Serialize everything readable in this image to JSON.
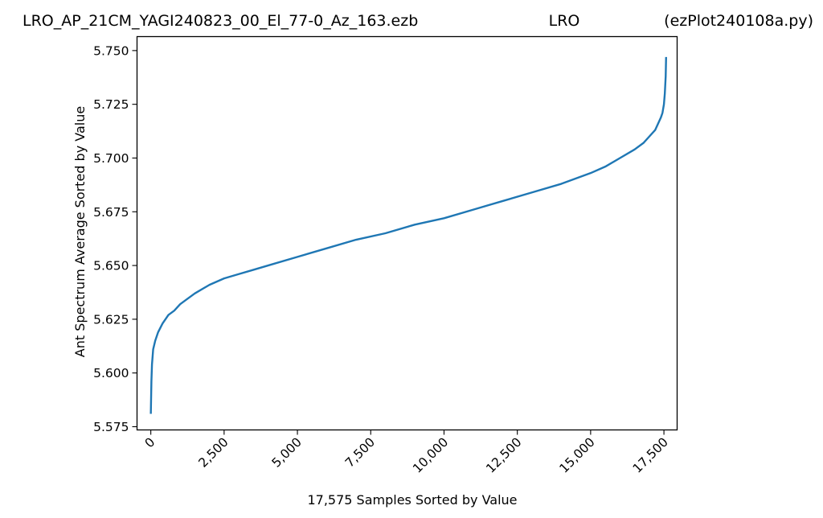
{
  "chart_data": {
    "type": "line",
    "title_left": "LRO_AP_21CM_YAGI240823_00_El_77-0_Az_163.ezb",
    "title_center": "LRO",
    "title_right": "(ezPlot240108a.py)",
    "xlabel": "17,575 Samples Sorted by Value",
    "ylabel": "Ant Spectrum Average Sorted by Value",
    "xlim": [
      -470,
      17950
    ],
    "ylim": [
      5.5735,
      5.7565
    ],
    "xticks": [
      0,
      2500,
      5000,
      7500,
      10000,
      12500,
      15000,
      17500
    ],
    "xtick_labels": [
      "0",
      "2,500",
      "5,000",
      "7,500",
      "10,000",
      "12,500",
      "15,000",
      "17,500"
    ],
    "yticks": [
      5.575,
      5.6,
      5.625,
      5.65,
      5.675,
      5.7,
      5.725,
      5.75
    ],
    "ytick_labels": [
      "5.575",
      "5.600",
      "5.625",
      "5.650",
      "5.675",
      "5.700",
      "5.725",
      "5.750"
    ],
    "grid": false,
    "line_color": "#1f77b4",
    "series": [
      {
        "x": [
          0,
          20,
          40,
          80,
          150,
          250,
          400,
          600,
          800,
          1000,
          1200,
          1500,
          2000,
          2500,
          3000,
          3500,
          4000,
          5000,
          6000,
          7000,
          8000,
          9000,
          10000,
          11000,
          12000,
          13000,
          14000,
          15000,
          15500,
          16000,
          16500,
          16800,
          17000,
          17200,
          17300,
          17400,
          17450,
          17500,
          17530,
          17560,
          17574
        ],
        "y": [
          5.581,
          5.596,
          5.604,
          5.611,
          5.615,
          5.619,
          5.623,
          5.627,
          5.629,
          5.632,
          5.634,
          5.637,
          5.641,
          5.644,
          5.646,
          5.648,
          5.65,
          5.654,
          5.658,
          5.662,
          5.665,
          5.669,
          5.672,
          5.676,
          5.68,
          5.684,
          5.688,
          5.693,
          5.696,
          5.7,
          5.704,
          5.707,
          5.71,
          5.713,
          5.716,
          5.719,
          5.721,
          5.725,
          5.73,
          5.738,
          5.747
        ]
      }
    ]
  }
}
